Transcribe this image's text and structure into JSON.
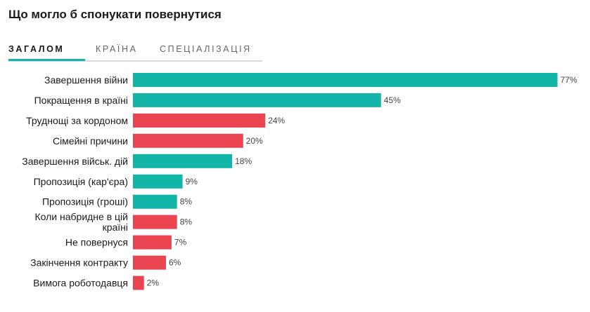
{
  "title": "Що могло б спонукати повернутися",
  "tabs": [
    {
      "label": "ЗАГАЛОМ",
      "active": true
    },
    {
      "label": "КРАЇНА",
      "active": false
    },
    {
      "label": "СПЕЦІАЛІЗАЦІЯ",
      "active": false
    }
  ],
  "colors": {
    "teal": "#12b5a8",
    "red": "#ea4450"
  },
  "chart_data": {
    "type": "bar",
    "orientation": "horizontal",
    "title": "Що могло б спонукати повернутися",
    "xlim": [
      0,
      80
    ],
    "grid": false,
    "categories": [
      [
        "Завершення війни"
      ],
      [
        "Покращення в країні"
      ],
      [
        "Труднощі за кордоном"
      ],
      [
        "Сімейні причини"
      ],
      [
        "Завершення військ. дій"
      ],
      [
        "Пропозиція (кар'єра)"
      ],
      [
        "Пропозиція (гроші)"
      ],
      [
        "Коли набридне в цій",
        "країні"
      ],
      [
        "Не повернуся"
      ],
      [
        "Закінчення контракту"
      ],
      [
        "Вимога роботодавця"
      ]
    ],
    "values": [
      77,
      45,
      24,
      20,
      18,
      9,
      8,
      8,
      7,
      6,
      2
    ],
    "value_labels": [
      "77%",
      "45%",
      "24%",
      "20%",
      "18%",
      "9%",
      "8%",
      "8%",
      "7%",
      "6%",
      "2%"
    ],
    "bar_colors": [
      "teal",
      "teal",
      "red",
      "red",
      "teal",
      "teal",
      "teal",
      "red",
      "red",
      "red",
      "red"
    ]
  }
}
